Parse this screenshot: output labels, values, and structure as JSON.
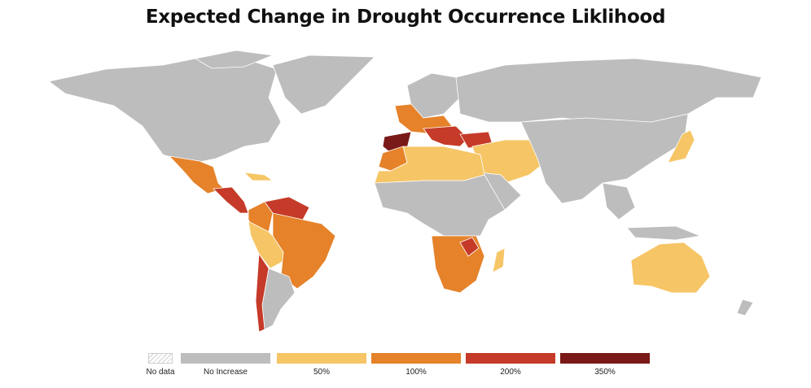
{
  "title": "Expected Change in Drought Occurrence Liklihood",
  "colors": {
    "no_data": "#e6e6e6",
    "no_increase": "#bdbdbd",
    "p50": "#f6c565",
    "p100": "#e5822a",
    "p200": "#c53a28",
    "p350": "#7a1a18",
    "ocean": "#ffffff"
  },
  "legend": [
    {
      "key": "no_data",
      "label": "No data"
    },
    {
      "key": "no_increase",
      "label": "No Increase"
    },
    {
      "key": "p50",
      "label": "50%"
    },
    {
      "key": "p100",
      "label": "100%"
    },
    {
      "key": "p200",
      "label": "200%"
    },
    {
      "key": "p350",
      "label": "350%"
    }
  ],
  "regions": [
    {
      "name": "North America",
      "category": "no_increase"
    },
    {
      "name": "Greenland",
      "category": "no_increase"
    },
    {
      "name": "Mexico",
      "category": "p100"
    },
    {
      "name": "Central America",
      "category": "p200"
    },
    {
      "name": "Caribbean",
      "category": "p50"
    },
    {
      "name": "Brazil",
      "category": "p100"
    },
    {
      "name": "Venezuela",
      "category": "p200"
    },
    {
      "name": "Colombia",
      "category": "p100"
    },
    {
      "name": "Peru",
      "category": "p50"
    },
    {
      "name": "Argentina",
      "category": "no_increase"
    },
    {
      "name": "Chile",
      "category": "p200"
    },
    {
      "name": "Russia",
      "category": "no_increase"
    },
    {
      "name": "Spain",
      "category": "p350"
    },
    {
      "name": "Western Europe",
      "category": "p100"
    },
    {
      "name": "Northern Europe",
      "category": "no_increase"
    },
    {
      "name": "Italy and Balkans",
      "category": "p200"
    },
    {
      "name": "Turkey",
      "category": "p200"
    },
    {
      "name": "Middle East",
      "category": "p50"
    },
    {
      "name": "North Africa",
      "category": "p50"
    },
    {
      "name": "Morocco",
      "category": "p100"
    },
    {
      "name": "Central Africa",
      "category": "no_increase"
    },
    {
      "name": "Southern Africa",
      "category": "p100"
    },
    {
      "name": "Zimbabwe",
      "category": "p200"
    },
    {
      "name": "Madagascar",
      "category": "p50"
    },
    {
      "name": "China and Asia",
      "category": "no_increase"
    },
    {
      "name": "Japan",
      "category": "p50"
    },
    {
      "name": "Australia",
      "category": "p50"
    },
    {
      "name": "Southeast Asia",
      "category": "no_increase"
    }
  ]
}
